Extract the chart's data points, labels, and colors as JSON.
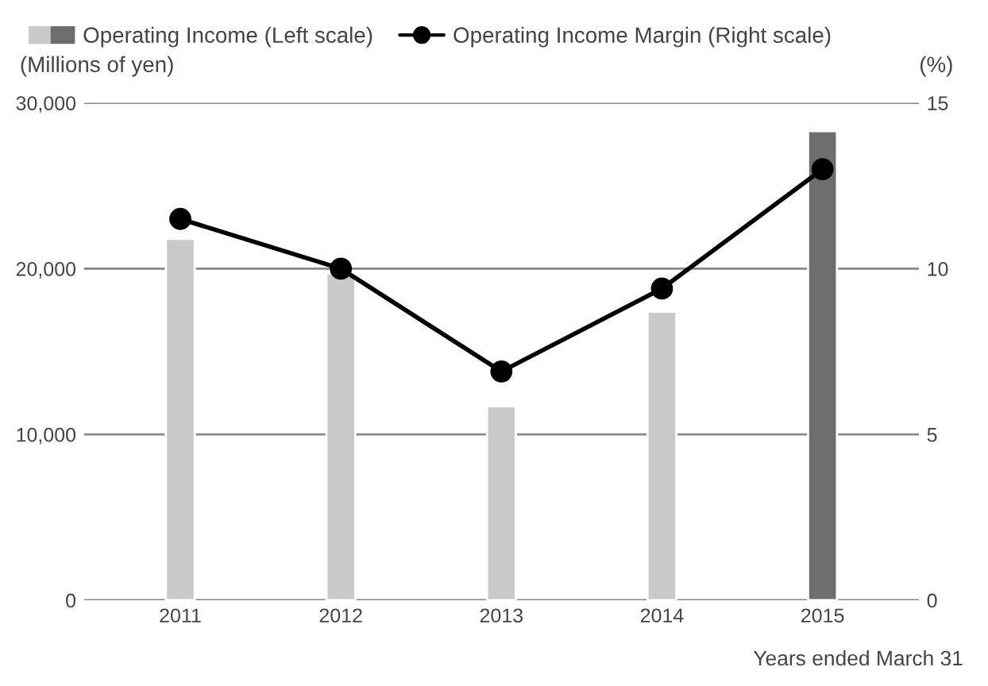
{
  "chart_data": {
    "type": "bar",
    "categories": [
      "2011",
      "2012",
      "2013",
      "2014",
      "2015"
    ],
    "series": [
      {
        "name": "Operating Income (Left scale)",
        "colors": [
          "#c8c9c8",
          "#c8c9c8",
          "#c8c9c8",
          "#c8c9c8",
          "#6e6e6e"
        ],
        "values": [
          21800,
          19700,
          11700,
          17400,
          28300
        ]
      },
      {
        "name": "Operating Income Margin (Right scale)",
        "type": "line",
        "axis": "y2",
        "color": "#000000",
        "marker": "circle",
        "line_style": "solid",
        "values": [
          11.5,
          10.0,
          6.9,
          9.4,
          13.0
        ]
      }
    ],
    "ylabel": "(Millions of yen)",
    "y2label": "(%)",
    "ylim": [
      0,
      30000
    ],
    "yticks": [
      {
        "value": 0,
        "label": "0"
      },
      {
        "value": 10000,
        "label": "10,000"
      },
      {
        "value": 20000,
        "label": "20,000"
      },
      {
        "value": 30000,
        "label": "30,000"
      }
    ],
    "y2lim": [
      0,
      15
    ],
    "y2ticks": [
      0,
      5,
      10,
      15
    ],
    "grid": "y",
    "legend": "top left",
    "annotations": [
      "Years ended March 31"
    ]
  }
}
